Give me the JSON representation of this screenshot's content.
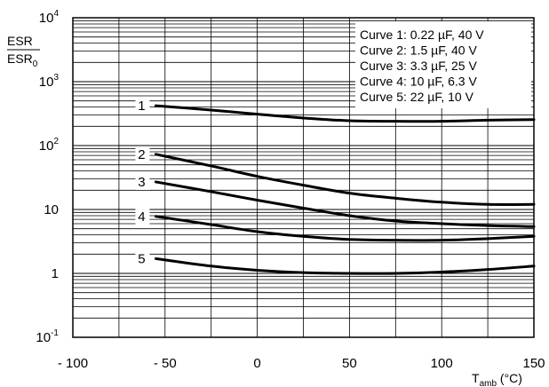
{
  "chart_data": {
    "type": "line",
    "title": "",
    "ylabel": {
      "num": "ESR",
      "den": "ESR",
      "den_sub": "0"
    },
    "xlabel": {
      "main": "T",
      "sub": "amb",
      "unit": " (°C)"
    },
    "y_scale": "log",
    "ylim": [
      0.1,
      10000
    ],
    "xlim": [
      -100,
      150
    ],
    "x_ticks": [
      {
        "value": -100,
        "label": "- 100"
      },
      {
        "value": -50,
        "label": "- 50"
      },
      {
        "value": 0,
        "label": "0"
      },
      {
        "value": 50,
        "label": "50"
      },
      {
        "value": 100,
        "label": "100"
      },
      {
        "value": 150,
        "label": "150"
      }
    ],
    "y_ticks": [
      {
        "value": 0.1,
        "base": "10",
        "exp": "-1",
        "label": ""
      },
      {
        "value": 1,
        "base": "",
        "exp": "",
        "label": "1"
      },
      {
        "value": 10,
        "base": "",
        "exp": "",
        "label": "10"
      },
      {
        "value": 100,
        "base": "10",
        "exp": "2",
        "label": ""
      },
      {
        "value": 1000,
        "base": "10",
        "exp": "3",
        "label": ""
      },
      {
        "value": 10000,
        "base": "10",
        "exp": "4",
        "label": ""
      }
    ],
    "grid": true,
    "legend_position": "top-right",
    "legend": [
      "Curve 1: 0.22 µF, 40 V",
      "Curve 2: 1.5 µF, 40 V",
      "Curve 3: 3.3 µF, 25 V",
      "Curve 4: 10 µF, 6.3 V",
      "Curve 5: 22 µF, 10 V"
    ],
    "series": [
      {
        "label": "1",
        "x": [
          -55,
          -25,
          0,
          25,
          50,
          75,
          100,
          125,
          150
        ],
        "y": [
          420,
          360,
          310,
          270,
          245,
          240,
          240,
          250,
          255
        ]
      },
      {
        "label": "2",
        "x": [
          -55,
          -25,
          0,
          25,
          50,
          75,
          100,
          125,
          150
        ],
        "y": [
          73,
          48,
          33,
          24,
          18,
          15,
          13,
          12,
          12
        ]
      },
      {
        "label": "3",
        "x": [
          -55,
          -25,
          0,
          25,
          50,
          75,
          100,
          125,
          150
        ],
        "y": [
          27,
          19,
          14,
          10.5,
          8,
          6.6,
          6,
          5.6,
          5.4
        ]
      },
      {
        "label": "4",
        "x": [
          -55,
          -25,
          0,
          25,
          50,
          75,
          100,
          125,
          150
        ],
        "y": [
          7.8,
          5.8,
          4.5,
          3.8,
          3.4,
          3.3,
          3.3,
          3.5,
          3.8
        ]
      },
      {
        "label": "5",
        "x": [
          -55,
          -25,
          0,
          25,
          50,
          75,
          100,
          125,
          150
        ],
        "y": [
          1.7,
          1.3,
          1.12,
          1.03,
          1.0,
          1.0,
          1.05,
          1.15,
          1.3
        ]
      }
    ]
  }
}
